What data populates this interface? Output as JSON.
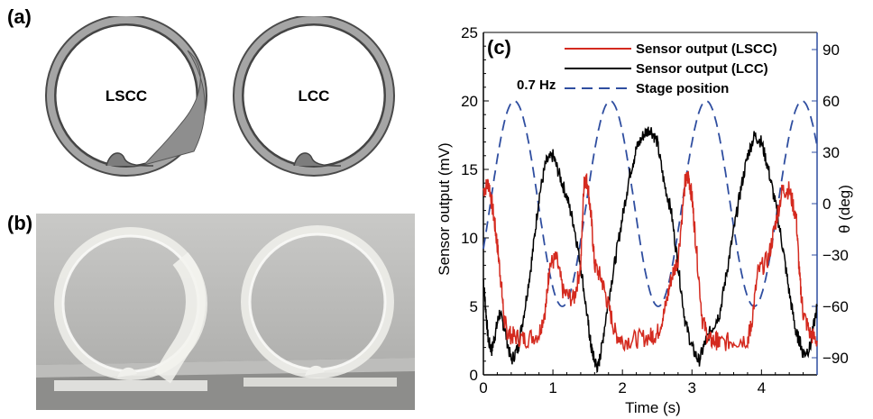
{
  "panels": {
    "a": {
      "label": "(a)",
      "rings": [
        "LSCC",
        "LCC"
      ]
    },
    "b": {
      "label": "(b)"
    },
    "c": {
      "label": "(c)",
      "frequency_note": "0.7 Hz"
    }
  },
  "colors": {
    "lscc": "#d42a1f",
    "lcc": "#000000",
    "stage": "#2f4ea0",
    "right_axis": "#2f4ea0"
  },
  "chart_data": {
    "type": "line",
    "xlabel": "Time (s)",
    "ylabel": "Sensor output (mV)",
    "y2label": "θ (deg)",
    "xlim": [
      0,
      4.8
    ],
    "ylim": [
      0,
      25
    ],
    "y2lim": [
      -100,
      100
    ],
    "x_ticks": [
      "0",
      "1",
      "2",
      "3",
      "4"
    ],
    "y_ticks": [
      "0",
      "5",
      "10",
      "15",
      "20",
      "25"
    ],
    "y2_ticks": [
      "−90",
      "−60",
      "−30",
      "0",
      "30",
      "60",
      "90"
    ],
    "legend_position": "top-right",
    "series": [
      {
        "name": "Sensor output (LSCC)",
        "axis": "left",
        "x": [
          0,
          0.08,
          0.15,
          0.2,
          0.25,
          0.3,
          0.35,
          0.45,
          0.6,
          0.8,
          0.9,
          0.95,
          1.05,
          1.15,
          1.3,
          1.4,
          1.45,
          1.5,
          1.55,
          1.6,
          1.7,
          1.8,
          1.9,
          2.0,
          2.2,
          2.4,
          2.5,
          2.6,
          2.7,
          2.8,
          2.9,
          2.95,
          3.0,
          3.05,
          3.15,
          3.25,
          3.35,
          3.4,
          3.6,
          3.8,
          3.85,
          3.95,
          4.1,
          4.2,
          4.3,
          4.4,
          4.5,
          4.55,
          4.6,
          4.7,
          4.8
        ],
        "y": [
          13.5,
          14,
          11.5,
          9.5,
          7,
          4,
          3,
          2.8,
          2.6,
          3,
          5,
          8,
          8.5,
          6,
          5.5,
          8,
          14.5,
          14,
          11.5,
          8,
          7,
          5,
          3,
          2.5,
          2.6,
          2.8,
          3,
          4.5,
          7,
          8.5,
          14,
          14.5,
          13,
          10,
          4,
          2.5,
          2.5,
          2.3,
          2.5,
          2.6,
          3.5,
          7.5,
          8.5,
          11,
          13.5,
          13.5,
          11.5,
          7,
          4.5,
          3,
          2.5
        ]
      },
      {
        "name": "Sensor output (LCC)",
        "axis": "left",
        "x": [
          0,
          0.03,
          0.07,
          0.12,
          0.17,
          0.23,
          0.3,
          0.4,
          0.5,
          0.6,
          0.7,
          0.8,
          0.9,
          1.0,
          1.1,
          1.2,
          1.3,
          1.4,
          1.5,
          1.55,
          1.6,
          1.65,
          1.7,
          1.8,
          1.9,
          2.0,
          2.1,
          2.2,
          2.3,
          2.4,
          2.5,
          2.6,
          2.7,
          2.8,
          2.9,
          3.0,
          3.1,
          3.2,
          3.3,
          3.4,
          3.5,
          3.6,
          3.7,
          3.8,
          3.9,
          4.0,
          4.1,
          4.2,
          4.3,
          4.4,
          4.5,
          4.55,
          4.6,
          4.7,
          4.8
        ],
        "y": [
          7,
          5,
          2.5,
          1.8,
          3,
          4.5,
          3.5,
          1,
          2,
          5,
          8.5,
          13,
          15.5,
          16,
          14.5,
          13,
          11,
          8,
          4,
          2,
          1,
          0.5,
          2,
          5.5,
          8.5,
          11.5,
          14.5,
          16.5,
          17.5,
          18,
          17,
          14,
          12,
          8,
          4,
          2,
          1,
          2.5,
          3.5,
          4.5,
          7.5,
          10.5,
          13.5,
          16,
          17.5,
          17,
          15,
          12.5,
          9.5,
          6,
          3,
          2.5,
          1.5,
          2,
          5
        ]
      },
      {
        "name": "Stage position",
        "axis": "right",
        "dash": true,
        "period_s": 1.38,
        "amplitude_deg": 60,
        "offset_deg": 0,
        "phase_s": 0.1
      }
    ]
  }
}
